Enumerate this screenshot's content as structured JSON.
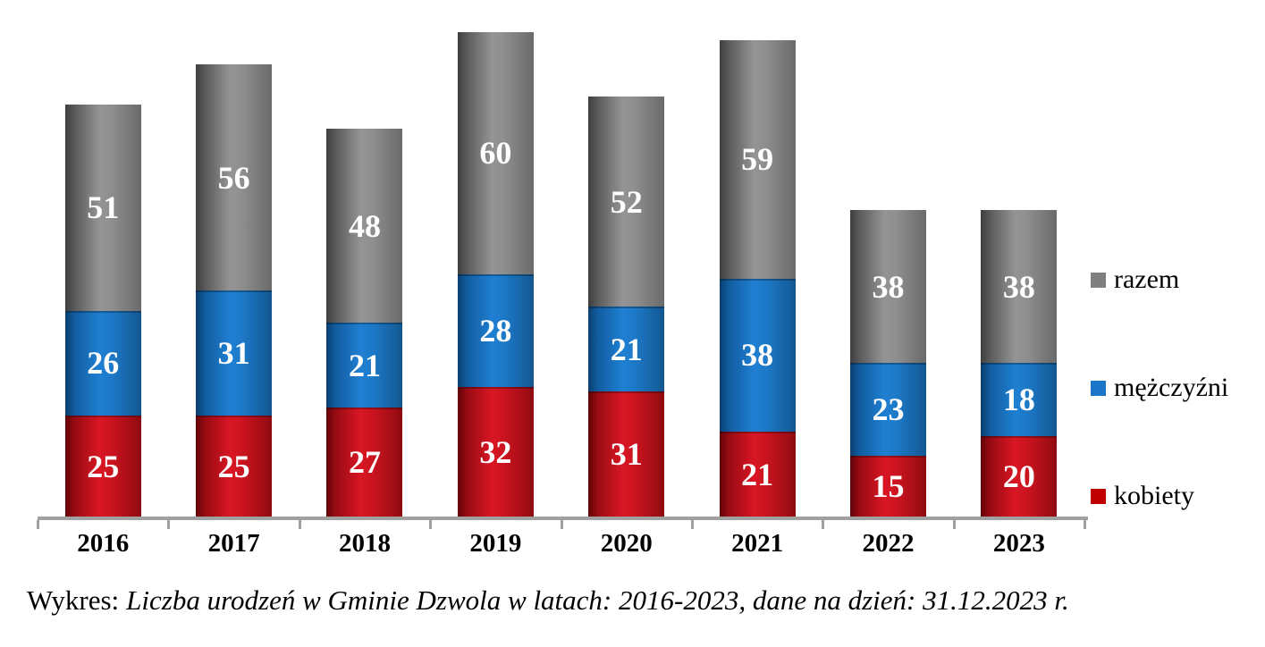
{
  "chart_data": {
    "type": "bar",
    "stacked": true,
    "title": "",
    "categories": [
      "2016",
      "2017",
      "2018",
      "2019",
      "2020",
      "2021",
      "2022",
      "2023"
    ],
    "series": [
      {
        "key": "kobiety",
        "name": "kobiety",
        "color": "#C00000",
        "values": [
          25,
          25,
          27,
          32,
          31,
          21,
          15,
          20
        ]
      },
      {
        "key": "mezczyzni",
        "name": "mężczyźni",
        "color": "#1B75C8",
        "values": [
          26,
          31,
          21,
          28,
          21,
          38,
          23,
          18
        ]
      },
      {
        "key": "razem",
        "name": "razem",
        "color": "#7F7F7F",
        "values": [
          51,
          56,
          48,
          60,
          52,
          59,
          38,
          38
        ]
      }
    ],
    "stack_order_bottom_to_top": [
      "kobiety",
      "mezczyzni",
      "razem"
    ],
    "value_labels": "inside-center-white",
    "legend_position": "right",
    "gridlines": false,
    "ylim": [
      0,
      120
    ],
    "x_axis": {
      "baseline": true,
      "tick_marks": 9,
      "axis_color": "#A0A0A0"
    }
  },
  "legend": {
    "items": [
      {
        "key": "razem",
        "label": "razem",
        "color": "#7F7F7F"
      },
      {
        "key": "mezczyzni",
        "label": "mężczyźni",
        "color": "#1B75C8"
      },
      {
        "key": "kobiety",
        "label": "kobiety",
        "color": "#C00000"
      }
    ]
  },
  "caption": {
    "prefix": "Wykres:",
    "italic": "Liczba urodzeń w Gminie Dzwola w latach: 2016-2023, dane na dzień: 31.12.2023 r."
  }
}
